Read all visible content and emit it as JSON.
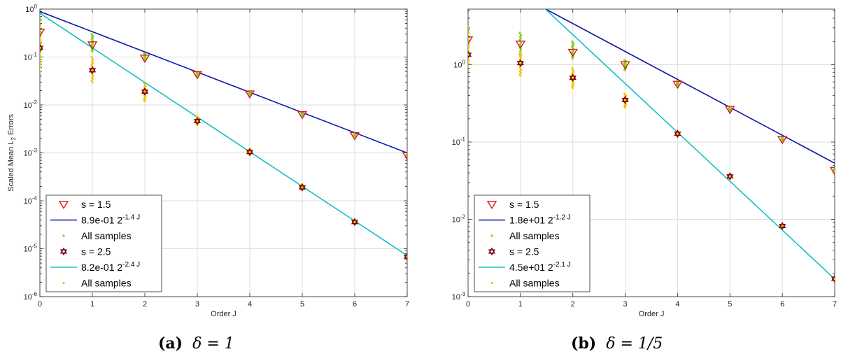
{
  "chart_data": [
    {
      "type": "scatter",
      "title": "",
      "caption": {
        "tag": "(a)",
        "math": "δ = 1"
      },
      "xlabel": "Order J",
      "ylabel_main": "Scaled Mean L",
      "ylabel_sub": "2",
      "ylabel_tail": " Errors",
      "xlim": [
        0,
        7
      ],
      "ylim_log10": [
        -6,
        0
      ],
      "yscale": "log",
      "grid": true,
      "legend_position": "bottom-left",
      "x_ticks": [
        "0",
        "1",
        "2",
        "3",
        "4",
        "5",
        "6",
        "7"
      ],
      "y_ticks": [
        {
          "exp": -6,
          "base": "10",
          "sup": "-6"
        },
        {
          "exp": -5,
          "base": "10",
          "sup": "-5"
        },
        {
          "exp": -4,
          "base": "10",
          "sup": "-4"
        },
        {
          "exp": -3,
          "base": "10",
          "sup": "-3"
        },
        {
          "exp": -2,
          "base": "10",
          "sup": "-2"
        },
        {
          "exp": -1,
          "base": "10",
          "sup": "-1"
        },
        {
          "exp": 0,
          "base": "10",
          "sup": "0"
        }
      ],
      "series": [
        {
          "name": "s = 1.5",
          "marker": "triangle-down",
          "color": "#e8141e",
          "x": [
            0,
            1,
            2,
            3,
            4,
            5,
            6,
            7
          ],
          "y": [
            0.33,
            0.18,
            0.095,
            0.043,
            0.017,
            0.0063,
            0.0023,
            0.00088
          ]
        },
        {
          "name": "8.9e-01 2^{-1.4 J}",
          "label_main": "8.9e-01 2",
          "label_sup": "-1.4 J",
          "kind": "fit",
          "color": "#0b13a8",
          "coef": 0.89,
          "exponent": -1.4
        },
        {
          "name": "All samples",
          "kind": "samples",
          "color": "#7ed321",
          "ranges": [
            [
              0,
              0.12,
              0.75
            ],
            [
              1,
              0.13,
              0.3
            ],
            [
              2,
              0.085,
              0.12
            ],
            [
              3,
              0.039,
              0.048
            ],
            [
              4,
              0.0158,
              0.0185
            ],
            [
              5,
              0.006,
              0.0067
            ],
            [
              6,
              0.0022,
              0.0024
            ],
            [
              7,
              0.00085,
              0.00092
            ]
          ]
        },
        {
          "name": "s = 2.5",
          "marker": "hexagram",
          "color": "#7a0010",
          "x": [
            0,
            1,
            2,
            3,
            4,
            5,
            6,
            7
          ],
          "y": [
            0.155,
            0.053,
            0.019,
            0.0046,
            0.00104,
            0.00019,
            3.6e-05,
            6.8e-06
          ]
        },
        {
          "name": "8.2e-01 2^{-2.4 J}",
          "label_main": "8.2e-01 2",
          "label_sup": "-2.4 J",
          "kind": "fit",
          "color": "#17bfbf",
          "coef": 0.82,
          "exponent": -2.4
        },
        {
          "name": "All samples",
          "kind": "samples",
          "color": "#f5c400",
          "ranges": [
            [
              0,
              0.05,
              0.28
            ],
            [
              1,
              0.03,
              0.1
            ],
            [
              2,
              0.012,
              0.028
            ],
            [
              3,
              0.0038,
              0.0058
            ],
            [
              4,
              0.0009,
              0.0012
            ],
            [
              5,
              0.00017,
              0.00022
            ],
            [
              6,
              3.3e-05,
              4e-05
            ],
            [
              7,
              6.2e-06,
              7.4e-06
            ]
          ]
        }
      ]
    },
    {
      "type": "scatter",
      "title": "",
      "caption": {
        "tag": "(b)",
        "math": "δ = 1/5"
      },
      "xlabel": "Order J",
      "ylabel_main": "",
      "ylabel_sub": "",
      "ylabel_tail": "",
      "xlim": [
        0,
        7
      ],
      "ylim_log10": [
        -3,
        0.72
      ],
      "yscale": "log",
      "grid": true,
      "legend_position": "bottom-left",
      "x_ticks": [
        "0",
        "1",
        "2",
        "3",
        "4",
        "5",
        "6",
        "7"
      ],
      "y_ticks": [
        {
          "exp": -3,
          "base": "10",
          "sup": "-3"
        },
        {
          "exp": -2,
          "base": "10",
          "sup": "-2"
        },
        {
          "exp": -1,
          "base": "10",
          "sup": "-1"
        },
        {
          "exp": 0,
          "base": "10",
          "sup": "0"
        }
      ],
      "series": [
        {
          "name": "s = 1.5",
          "marker": "triangle-down",
          "color": "#e8141e",
          "x": [
            0,
            1,
            2,
            3,
            4,
            5,
            6,
            7
          ],
          "y": [
            2.1,
            1.85,
            1.45,
            1.0,
            0.56,
            0.265,
            0.108,
            0.043
          ]
        },
        {
          "name": "1.8e+01 2^{-1.2 J}",
          "label_main": "1.8e+01 2",
          "label_sup": "-1.2 J",
          "kind": "fit",
          "color": "#0b13a8",
          "coef": 18,
          "exponent": -1.2
        },
        {
          "name": "All samples",
          "kind": "samples",
          "color": "#7ed321",
          "ranges": [
            [
              0,
              1.5,
              3.1
            ],
            [
              1,
              1.3,
              2.6
            ],
            [
              2,
              1.2,
              2.0
            ],
            [
              3,
              0.85,
              1.15
            ],
            [
              4,
              0.53,
              0.6
            ],
            [
              5,
              0.25,
              0.28
            ],
            [
              6,
              0.104,
              0.113
            ],
            [
              7,
              0.041,
              0.045
            ]
          ]
        },
        {
          "name": "s = 2.5",
          "marker": "hexagram",
          "color": "#7a0010",
          "x": [
            0,
            1,
            2,
            3,
            4,
            5,
            6,
            7
          ],
          "y": [
            1.35,
            1.05,
            0.68,
            0.35,
            0.128,
            0.036,
            0.0082,
            0.0017
          ]
        },
        {
          "name": "4.5e+01 2^{-2.1 J}",
          "label_main": "4.5e+01 2",
          "label_sup": "-2.1 J",
          "kind": "fit",
          "color": "#17bfbf",
          "coef": 45,
          "exponent": -2.1
        },
        {
          "name": "All samples",
          "kind": "samples",
          "color": "#f5c400",
          "ranges": [
            [
              0,
              0.95,
              1.9
            ],
            [
              1,
              0.72,
              1.45
            ],
            [
              2,
              0.5,
              0.9
            ],
            [
              3,
              0.28,
              0.42
            ],
            [
              4,
              0.12,
              0.138
            ],
            [
              5,
              0.034,
              0.038
            ],
            [
              6,
              0.0079,
              0.0085
            ],
            [
              7,
              0.00165,
              0.00178
            ]
          ]
        }
      ]
    }
  ]
}
